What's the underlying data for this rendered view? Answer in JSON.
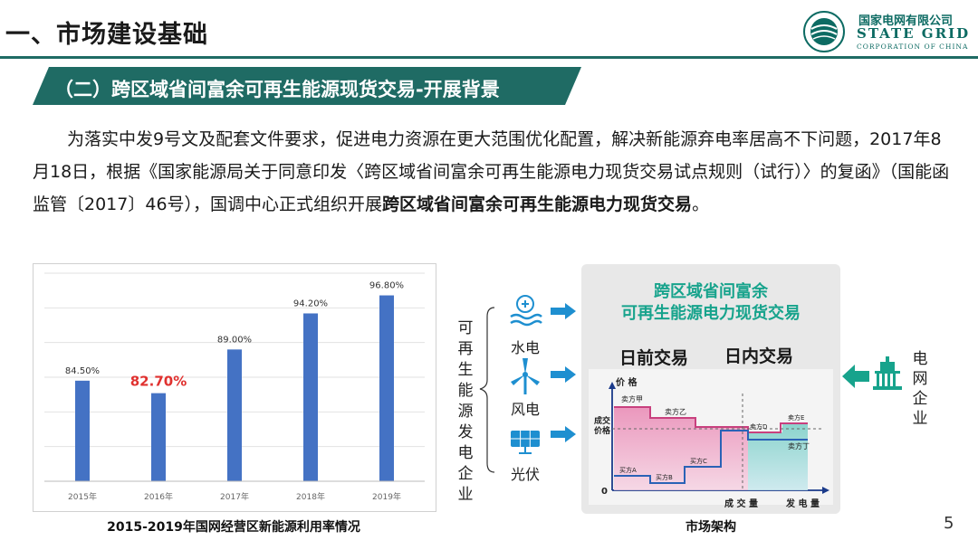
{
  "header": {
    "title": "一、市场建设基础",
    "logo": {
      "cn": "国家电网有限公司",
      "en_line1": "STATE GRID",
      "en_line2": "CORPORATION OF CHINA"
    }
  },
  "subtitle": "（二）跨区域省间富余可再生能源现货交易-开展背景",
  "body": {
    "text_normal": "为落实中发9号文及配套文件要求，促进电力资源在更大范围优化配置，解决新能源弃电率居高不下问题，2017年8月18日，根据《国家能源局关于同意印发〈跨区域省间富余可再生能源电力现货交易试点规则（试行）〉的复函》（国能函监管〔2017〕46号），国调中心正式组织开展",
    "text_bold": "跨区域省间富余可再生能源电力现货交易",
    "text_end": "。"
  },
  "chart_data": {
    "type": "bar",
    "categories": [
      "2015年",
      "2016年",
      "2017年",
      "2018年",
      "2019年"
    ],
    "values": [
      84.5,
      82.7,
      89.0,
      94.2,
      96.8
    ],
    "data_labels": [
      "84.50%",
      "82.70%",
      "89.00%",
      "94.20%",
      "96.80%"
    ],
    "highlight_index": 1,
    "ylim": [
      70,
      100
    ],
    "bar_color": "#4472c4",
    "highlight_label_color": "#e0312f",
    "grid": true,
    "caption": "2015-2019年国网经营区新能源利用率情况"
  },
  "diagram": {
    "left_group_label": "可再生能源发电企业",
    "sources": [
      {
        "label": "水电",
        "icon": "hydro-icon"
      },
      {
        "label": "风电",
        "icon": "wind-turbine-icon"
      },
      {
        "label": "光伏",
        "icon": "solar-panel-icon"
      }
    ],
    "market_title_1": "跨区域省间富余",
    "market_title_2": "可再生能源电力现货交易",
    "day_ahead": "日前交易",
    "intraday": "日内交易",
    "axis_price": "价 格",
    "axis_clearing_price": "成交价格",
    "axis_zero": "0",
    "axis_volume": "成 交 量",
    "axis_generation": "发 电 量",
    "sellers": [
      "卖方甲",
      "卖方乙",
      "卖方D",
      "卖方E",
      "卖方丁"
    ],
    "buyers": [
      "买方A",
      "买方B",
      "买方C"
    ],
    "right_label": "电网企业",
    "right_icon": "government-building-icon",
    "caption": "市场架构",
    "colors": {
      "accent": "#17a38c",
      "arrow": "#1e8fd0",
      "box": "#e8e8e8"
    }
  },
  "page_number": "5"
}
